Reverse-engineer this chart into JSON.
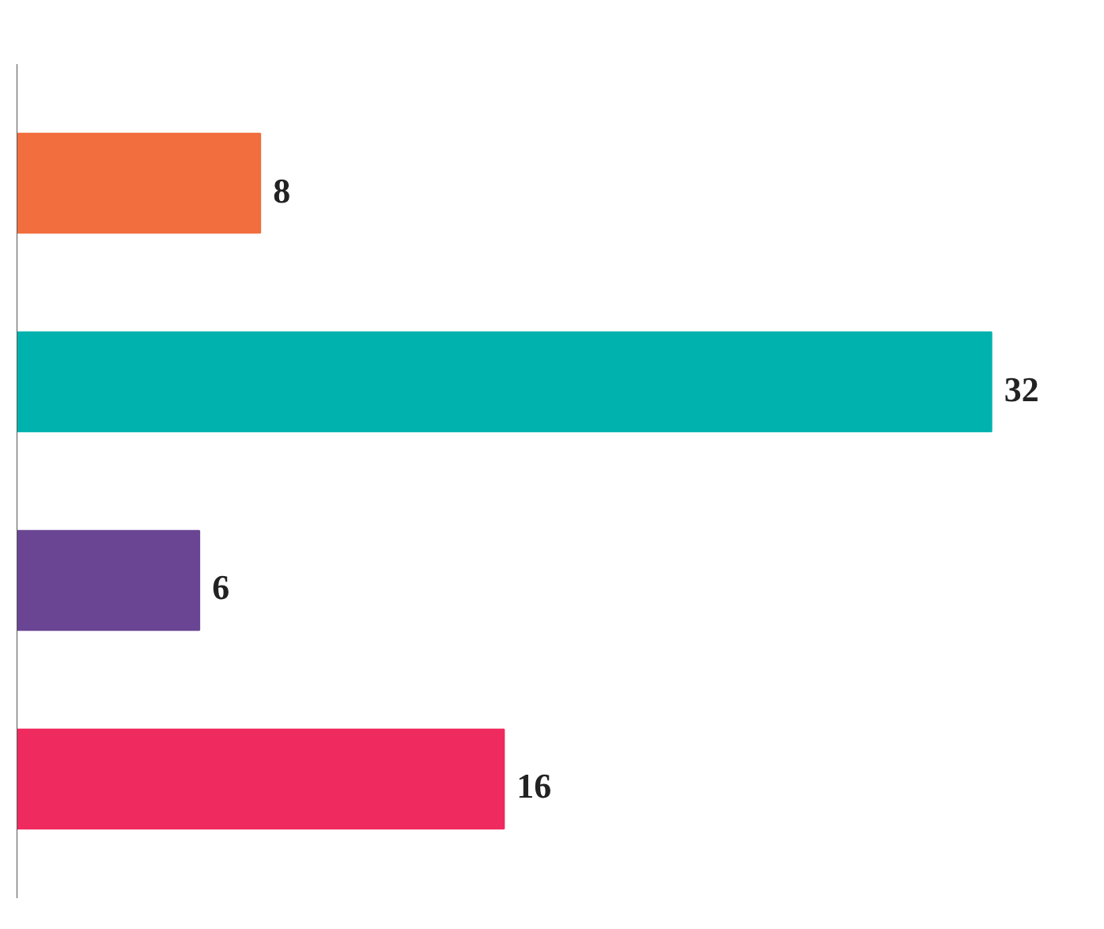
{
  "chart_data": {
    "type": "bar",
    "orientation": "horizontal",
    "categories": [
      null,
      null,
      null,
      null
    ],
    "values": [
      8,
      32,
      6,
      16
    ],
    "colors": [
      "#f26e3f",
      "#00b2ae",
      "#6a4593",
      "#ef2a5e"
    ],
    "data_labels": true
  }
}
